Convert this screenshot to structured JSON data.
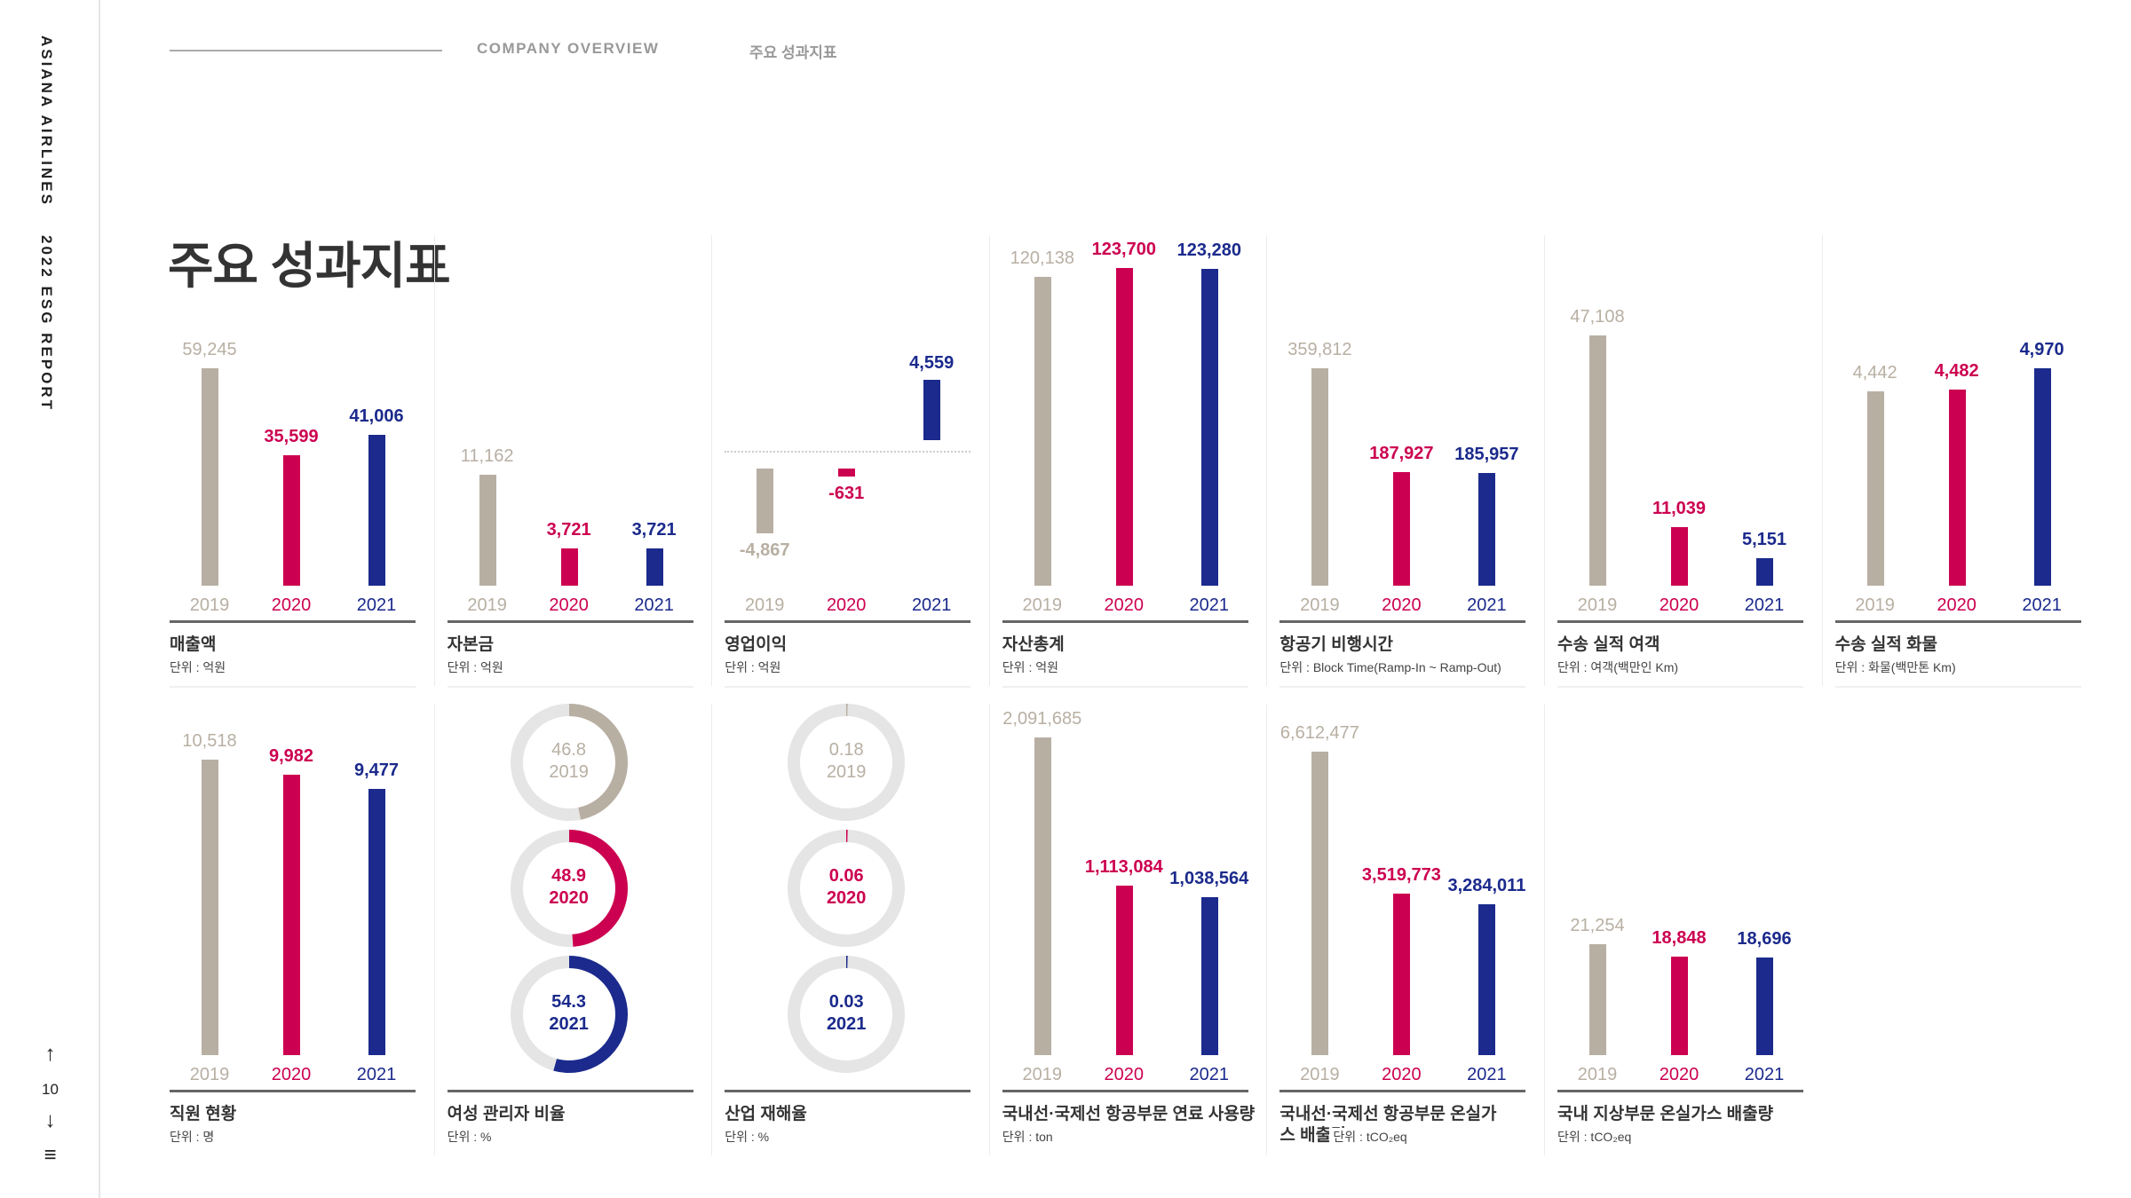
{
  "sidebar": {
    "brand": "ASIANA AIRLINES",
    "report": "2022 ESG REPORT",
    "page_number": "10",
    "up_icon": "arrow-up-icon",
    "down_icon": "arrow-down-icon",
    "menu_icon": "hamburger-menu-icon"
  },
  "header": {
    "section": "COMPANY OVERVIEW",
    "subsection": "주요 성과지표"
  },
  "page_title": "주요 성과지표",
  "colors": {
    "2019": "#b8afa3",
    "2020": "#cc0050",
    "2021": "#1b2a8c",
    "track": "#e5e5e5"
  },
  "chart_data": [
    {
      "type": "bar",
      "title": "매출액",
      "unit": "단위 : 억원",
      "categories": [
        "2019",
        "2020",
        "2021"
      ],
      "values": [
        59245,
        35599,
        41006
      ]
    },
    {
      "type": "bar",
      "title": "자본금",
      "unit": "단위 : 억원",
      "categories": [
        "2019",
        "2020",
        "2021"
      ],
      "values": [
        11162,
        3721,
        3721
      ]
    },
    {
      "type": "bar",
      "title": "영업이익",
      "unit": "단위 : 억원",
      "categories": [
        "2019",
        "2020",
        "2021"
      ],
      "values": [
        -4867,
        -631,
        4559
      ]
    },
    {
      "type": "bar",
      "title": "자산총계",
      "unit": "단위 : 억원",
      "categories": [
        "2019",
        "2020",
        "2021"
      ],
      "values": [
        120138,
        123700,
        123280
      ]
    },
    {
      "type": "bar",
      "title": "항공기 비행시간",
      "unit": "단위 : Block Time(Ramp-In ~ Ramp-Out)",
      "categories": [
        "2019",
        "2020",
        "2021"
      ],
      "values": [
        359812,
        187927,
        185957
      ]
    },
    {
      "type": "bar",
      "title": "수송 실적 여객",
      "unit": "단위 : 여객(백만인 Km)",
      "categories": [
        "2019",
        "2020",
        "2021"
      ],
      "values": [
        47108,
        11039,
        5151
      ]
    },
    {
      "type": "bar",
      "title": "수송 실적 화물",
      "unit": "단위 : 화물(백만톤 Km)",
      "categories": [
        "2019",
        "2020",
        "2021"
      ],
      "values": [
        4442,
        4482,
        4970
      ]
    },
    {
      "type": "bar",
      "title": "직원 현황",
      "unit": "단위 : 명",
      "categories": [
        "2019",
        "2020",
        "2021"
      ],
      "values": [
        10518,
        9982,
        9477
      ]
    },
    {
      "type": "pie",
      "title": "여성 관리자 비율",
      "unit": "단위 : %",
      "categories": [
        "2019",
        "2020",
        "2021"
      ],
      "values": [
        46.8,
        48.9,
        54.3
      ],
      "labels": [
        "46.8",
        "48.9",
        "54.3"
      ]
    },
    {
      "type": "pie",
      "title": "산업 재해율",
      "unit": "단위 : %",
      "categories": [
        "2019",
        "2020",
        "2021"
      ],
      "values": [
        0.18,
        0.06,
        0.03
      ],
      "labels": [
        "0.18",
        "0.06",
        "0.03"
      ]
    },
    {
      "type": "bar",
      "title": "국내선·국제선 항공부문 연료 사용량",
      "unit": "단위 : ton",
      "categories": [
        "2019",
        "2020",
        "2021"
      ],
      "values": [
        2091685,
        1113084,
        1038564
      ]
    },
    {
      "type": "bar",
      "title": "국내선·국제선 항공부문 온실가스 배출량",
      "unit": "단위 : tCO₂eq",
      "categories": [
        "2019",
        "2020",
        "2021"
      ],
      "values": [
        6612477,
        3519773,
        3284011
      ]
    },
    {
      "type": "bar",
      "title": "국내 지상부문 온실가스 배출량",
      "unit": "단위 : tCO₂eq",
      "categories": [
        "2019",
        "2020",
        "2021"
      ],
      "values": [
        21254,
        18848,
        18696
      ]
    }
  ]
}
